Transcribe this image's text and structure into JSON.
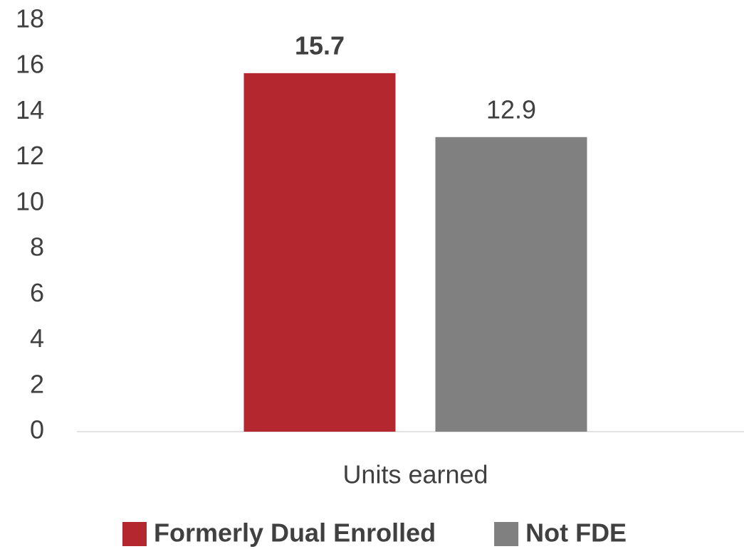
{
  "chart_data": {
    "type": "bar",
    "categories": [
      "Units earned"
    ],
    "series": [
      {
        "name": "Formerly Dual Enrolled",
        "color": "#b5272f",
        "values": [
          15.7
        ]
      },
      {
        "name": "Not FDE",
        "color": "#808080",
        "values": [
          12.9
        ]
      }
    ],
    "ylim": [
      0,
      18
    ],
    "yticks": [
      0,
      2,
      4,
      6,
      8,
      10,
      12,
      14,
      16,
      18
    ],
    "grid": false,
    "legend": "bottom"
  }
}
